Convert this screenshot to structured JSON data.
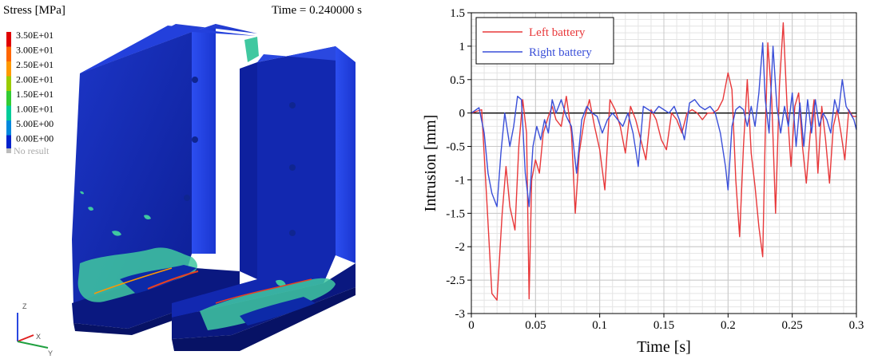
{
  "fea_view": {
    "legend_title": "Stress [MPa]",
    "time_label": "Time = 0.240000 s",
    "legend_values": [
      "3.50E+01",
      "3.00E+01",
      "2.50E+01",
      "2.00E+01",
      "1.50E+01",
      "1.00E+01",
      "5.00E+00",
      "0.00E+00"
    ],
    "legend_colors": [
      "#e00000",
      "#ff6600",
      "#ff9900",
      "#99cc00",
      "#33cc33",
      "#00cc99",
      "#0088dd",
      "#0022cc"
    ],
    "no_result_label": "No result",
    "axis_labels": [
      "Z",
      "X",
      "Y"
    ],
    "colors": {
      "body_dark": "#0b1a8a",
      "body_mid": "#1530c8",
      "body_light": "#2a4be6",
      "stress_mid": "#40c8a0",
      "stress_hot": "#e84020"
    }
  },
  "chart_data": {
    "type": "line",
    "xlabel": "Time [s]",
    "ylabel": "Intrusion [mm]",
    "xlim": [
      0,
      0.3
    ],
    "ylim": [
      -3,
      1.5
    ],
    "xticks": [
      "0",
      "0.05",
      "0.1",
      "0.15",
      "0.2",
      "0.25",
      "0.3"
    ],
    "yticks": [
      "1.5",
      "1",
      "0.5",
      "0",
      "-0.5",
      "-1",
      "-1.5",
      "-2",
      "-2.5",
      "-3"
    ],
    "xtick_values": [
      0,
      0.05,
      0.1,
      0.15,
      0.2,
      0.25,
      0.3
    ],
    "ytick_values": [
      1.5,
      1,
      0.5,
      0,
      -0.5,
      -1,
      -1.5,
      -2,
      -2.5,
      -3
    ],
    "grid": true,
    "legend_position": "top-left",
    "series": [
      {
        "name": "Left battery",
        "color": "#e8383a",
        "x": [
          0,
          0.008,
          0.012,
          0.016,
          0.02,
          0.024,
          0.027,
          0.03,
          0.034,
          0.037,
          0.04,
          0.043,
          0.045,
          0.047,
          0.05,
          0.053,
          0.056,
          0.06,
          0.063,
          0.066,
          0.07,
          0.074,
          0.078,
          0.081,
          0.084,
          0.088,
          0.092,
          0.096,
          0.1,
          0.104,
          0.108,
          0.112,
          0.116,
          0.12,
          0.124,
          0.128,
          0.132,
          0.136,
          0.14,
          0.144,
          0.148,
          0.152,
          0.156,
          0.16,
          0.164,
          0.168,
          0.172,
          0.176,
          0.18,
          0.184,
          0.188,
          0.192,
          0.196,
          0.2,
          0.203,
          0.206,
          0.209,
          0.212,
          0.215,
          0.218,
          0.221,
          0.224,
          0.227,
          0.229,
          0.231,
          0.234,
          0.237,
          0.24,
          0.243,
          0.246,
          0.249,
          0.252,
          0.255,
          0.258,
          0.261,
          0.264,
          0.267,
          0.27,
          0.273,
          0.276,
          0.279,
          0.282,
          0.285,
          0.288,
          0.291,
          0.294,
          0.297,
          0.3
        ],
        "y": [
          0,
          0.05,
          -1.3,
          -2.7,
          -2.8,
          -1.5,
          -0.8,
          -1.4,
          -1.75,
          -0.5,
          0.2,
          -0.3,
          -2.78,
          -1.0,
          -0.7,
          -0.9,
          -0.3,
          -0.05,
          0.1,
          -0.1,
          -0.2,
          0.25,
          -0.3,
          -1.5,
          -0.6,
          -0.1,
          0.2,
          -0.2,
          -0.55,
          -1.15,
          0.2,
          0.05,
          -0.2,
          -0.6,
          0.1,
          -0.1,
          -0.4,
          -0.7,
          0.05,
          -0.1,
          -0.4,
          -0.55,
          0.0,
          -0.1,
          -0.3,
          0.0,
          0.05,
          0.0,
          -0.1,
          0.0,
          0.0,
          0.05,
          0.2,
          0.6,
          0.35,
          -1.0,
          -1.85,
          -0.5,
          0.5,
          -0.6,
          -1.1,
          -1.7,
          -2.15,
          -0.3,
          1.05,
          0.2,
          -1.5,
          0.4,
          1.35,
          0.1,
          -0.8,
          0.1,
          0.3,
          -0.5,
          -1.05,
          -0.3,
          0.2,
          -0.9,
          0.1,
          -0.4,
          -1.05,
          -0.2,
          0.05,
          -0.3,
          -0.7,
          0.05,
          -0.05,
          -0.05
        ]
      },
      {
        "name": "Right battery",
        "color": "#3a4fd8",
        "x": [
          0,
          0.006,
          0.01,
          0.013,
          0.016,
          0.02,
          0.023,
          0.026,
          0.03,
          0.033,
          0.036,
          0.039,
          0.042,
          0.045,
          0.048,
          0.051,
          0.054,
          0.057,
          0.06,
          0.063,
          0.066,
          0.07,
          0.074,
          0.078,
          0.082,
          0.086,
          0.09,
          0.094,
          0.098,
          0.102,
          0.106,
          0.11,
          0.114,
          0.118,
          0.122,
          0.126,
          0.13,
          0.134,
          0.138,
          0.142,
          0.146,
          0.15,
          0.154,
          0.158,
          0.162,
          0.166,
          0.17,
          0.174,
          0.178,
          0.182,
          0.186,
          0.19,
          0.194,
          0.198,
          0.2,
          0.203,
          0.206,
          0.209,
          0.212,
          0.215,
          0.218,
          0.221,
          0.224,
          0.227,
          0.229,
          0.232,
          0.235,
          0.238,
          0.241,
          0.244,
          0.247,
          0.25,
          0.253,
          0.256,
          0.259,
          0.262,
          0.265,
          0.268,
          0.271,
          0.274,
          0.277,
          0.28,
          0.283,
          0.286,
          0.289,
          0.292,
          0.295,
          0.298,
          0.3
        ],
        "y": [
          0,
          0.08,
          -0.3,
          -0.9,
          -1.2,
          -1.4,
          -0.6,
          0.0,
          -0.5,
          -0.2,
          0.25,
          0.2,
          -0.9,
          -1.4,
          -0.5,
          -0.2,
          -0.4,
          -0.1,
          -0.3,
          0.2,
          0.0,
          0.2,
          -0.05,
          -0.2,
          -0.9,
          -0.1,
          0.1,
          0.0,
          -0.05,
          -0.3,
          -0.1,
          0.0,
          -0.1,
          -0.2,
          0.0,
          -0.3,
          -0.8,
          0.1,
          0.05,
          0.0,
          0.1,
          0.05,
          0.0,
          0.1,
          -0.1,
          -0.4,
          0.15,
          0.2,
          0.1,
          0.05,
          0.1,
          0.0,
          -0.3,
          -0.8,
          -1.15,
          -0.2,
          0.05,
          0.1,
          0.05,
          -0.2,
          0.1,
          -0.2,
          0.3,
          1.05,
          0.2,
          -0.3,
          1.0,
          0.1,
          -0.3,
          0.1,
          -0.2,
          0.3,
          -0.5,
          0.15,
          -0.5,
          0.2,
          -0.3,
          0.2,
          -0.2,
          0.0,
          -0.1,
          -0.3,
          0.2,
          0.0,
          0.5,
          0.1,
          0.0,
          -0.1,
          -0.25
        ]
      }
    ]
  }
}
